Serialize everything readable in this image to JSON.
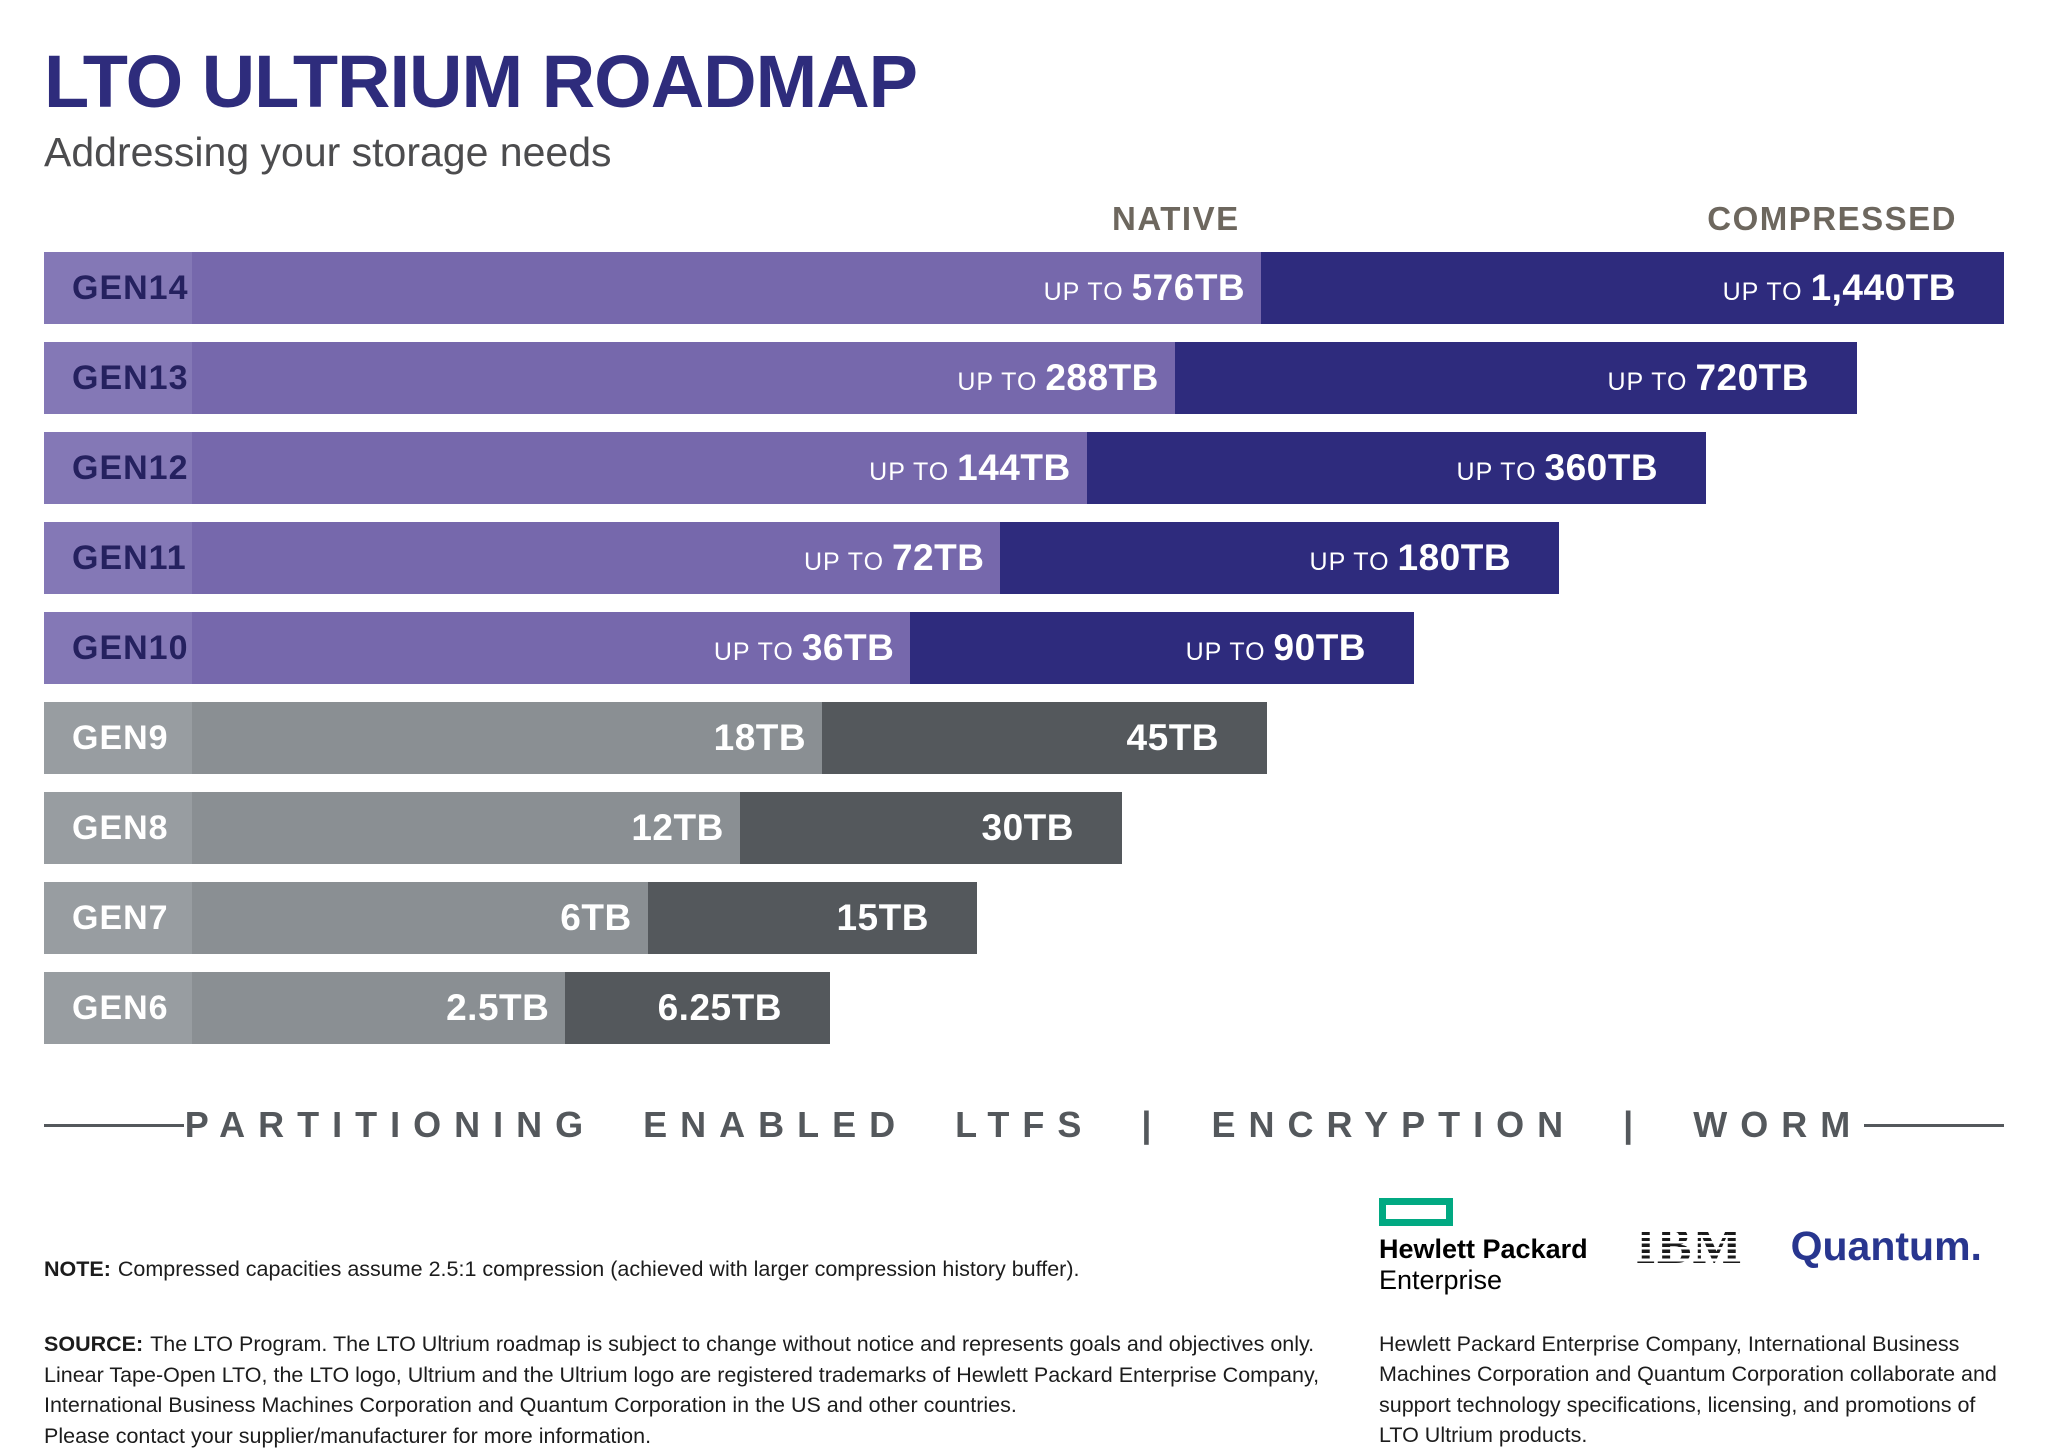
{
  "header": {
    "title": "LTO ULTRIUM ROADMAP",
    "subtitle": "Addressing your storage needs"
  },
  "column_headers": {
    "native": "NATIVE",
    "compressed": "COMPRESSED"
  },
  "chart_data": {
    "type": "bar",
    "orientation": "horizontal",
    "title": "LTO ULTRIUM ROADMAP",
    "subtitle": "Addressing your storage needs",
    "series_labels": [
      "NATIVE",
      "COMPRESSED"
    ],
    "unit": "TB",
    "compression_assumption": "2.5:1",
    "legend_position": "top",
    "rows": [
      {
        "gen": "GEN14",
        "prefix": "UP TO",
        "native_tb": 576,
        "compressed_tb": 1440,
        "native_label": "576TB",
        "compressed_label": "1,440TB",
        "palette": "purple",
        "native_pct": 62.1,
        "compressed_pct": 100
      },
      {
        "gen": "GEN13",
        "prefix": "UP TO",
        "native_tb": 288,
        "compressed_tb": 720,
        "native_label": "288TB",
        "compressed_label": "720TB",
        "palette": "purple",
        "native_pct": 57.7,
        "compressed_pct": 92.5
      },
      {
        "gen": "GEN12",
        "prefix": "UP TO",
        "native_tb": 144,
        "compressed_tb": 360,
        "native_label": "144TB",
        "compressed_label": "360TB",
        "palette": "purple",
        "native_pct": 53.2,
        "compressed_pct": 84.8
      },
      {
        "gen": "GEN11",
        "prefix": "UP TO",
        "native_tb": 72,
        "compressed_tb": 180,
        "native_label": "72TB",
        "compressed_label": "180TB",
        "palette": "purple",
        "native_pct": 48.8,
        "compressed_pct": 77.3
      },
      {
        "gen": "GEN10",
        "prefix": "UP TO",
        "native_tb": 36,
        "compressed_tb": 90,
        "native_label": "36TB",
        "compressed_label": "90TB",
        "palette": "purple",
        "native_pct": 44.2,
        "compressed_pct": 69.9
      },
      {
        "gen": "GEN9",
        "prefix": "",
        "native_tb": 18,
        "compressed_tb": 45,
        "native_label": "18TB",
        "compressed_label": "45TB",
        "palette": "gray",
        "native_pct": 39.7,
        "compressed_pct": 62.4
      },
      {
        "gen": "GEN8",
        "prefix": "",
        "native_tb": 12,
        "compressed_tb": 30,
        "native_label": "12TB",
        "compressed_label": "30TB",
        "palette": "gray",
        "native_pct": 35.5,
        "compressed_pct": 55.0
      },
      {
        "gen": "GEN7",
        "prefix": "",
        "native_tb": 6,
        "compressed_tb": 15,
        "native_label": "6TB",
        "compressed_label": "15TB",
        "palette": "gray",
        "native_pct": 30.8,
        "compressed_pct": 47.6
      },
      {
        "gen": "GEN6",
        "prefix": "",
        "native_tb": 2.5,
        "compressed_tb": 6.25,
        "native_label": "2.5TB",
        "compressed_label": "6.25TB",
        "palette": "gray",
        "native_pct": 26.6,
        "compressed_pct": 40.1
      }
    ]
  },
  "features_strip": {
    "text": "PARTITIONING ENABLED LTFS | ENCRYPTION | WORM"
  },
  "logos": {
    "hpe_line1": "Hewlett Packard",
    "hpe_line2": "Enterprise",
    "ibm": "IBM",
    "quantum": "Quantum."
  },
  "footnotes": {
    "note_label": "NOTE:",
    "note_text": "Compressed capacities assume 2.5:1 compression (achieved with larger compression history buffer).",
    "source_label": "SOURCE:",
    "source_text": "The LTO Program. The LTO Ultrium roadmap is subject to change without notice and represents goals and objectives only.\nLinear Tape-Open LTO, the LTO logo, Ultrium and the Ultrium logo are registered trademarks of Hewlett Packard Enterprise Company,\nInternational Business Machines Corporation and Quantum Corporation in the US and other countries.\nPlease contact your supplier/manufacturer for more information.",
    "collaboration_text": "Hewlett Packard Enterprise Company, International Business\nMachines Corporation and Quantum Corporation collaborate and\nsupport technology specifications, licensing, and promotions of\nLTO Ultrium products."
  },
  "colors": {
    "title": "#2e2c7c",
    "column_header": "#6d675e",
    "strip": "#54585c",
    "hpe_green": "#01a982",
    "quantum_blue": "#28368f",
    "palettes": {
      "purple": {
        "label": "#8478b6",
        "native": "#7668ac",
        "compressed": "#2e2b7d",
        "gen_text": "#25215f"
      },
      "gray": {
        "label": "#989da1",
        "native": "#8a8f93",
        "compressed": "#54585c",
        "gen_text": "#ffffff"
      }
    }
  }
}
